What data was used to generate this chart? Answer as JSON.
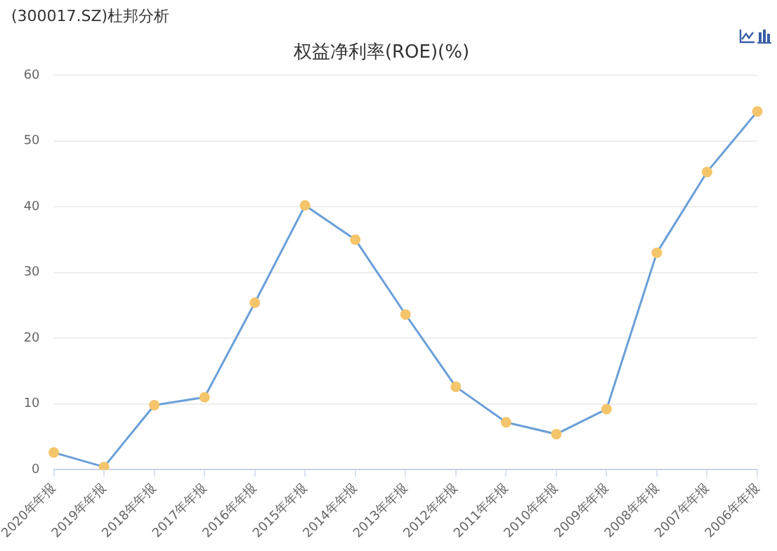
{
  "chart_data": {
    "type": "line",
    "title": "权益净利率(ROE)(%)",
    "annotations": [
      "(300017.SZ)杜邦分析"
    ],
    "categories": [
      "2020年年报",
      "2019年年报",
      "2018年年报",
      "2017年年报",
      "2016年年报",
      "2015年年报",
      "2014年年报",
      "2013年年报",
      "2012年年报",
      "2011年年报",
      "2010年年报",
      "2009年年报",
      "2008年年报",
      "2007年年报",
      "2006年年报"
    ],
    "series": [
      {
        "color": "#6a9fd8",
        "values": [
          2.6,
          0.4,
          9.8,
          11,
          25.4,
          40.2,
          35,
          23.6,
          12.6,
          7.2,
          5.4,
          9.2,
          33,
          45.3,
          54.5
        ]
      }
    ],
    "ylim": [
      0,
      60
    ],
    "yticks": [
      0,
      10,
      20,
      30,
      40,
      50,
      60
    ],
    "grid": "y",
    "legend": false,
    "marker": "circle",
    "line_style": "solid"
  }
}
